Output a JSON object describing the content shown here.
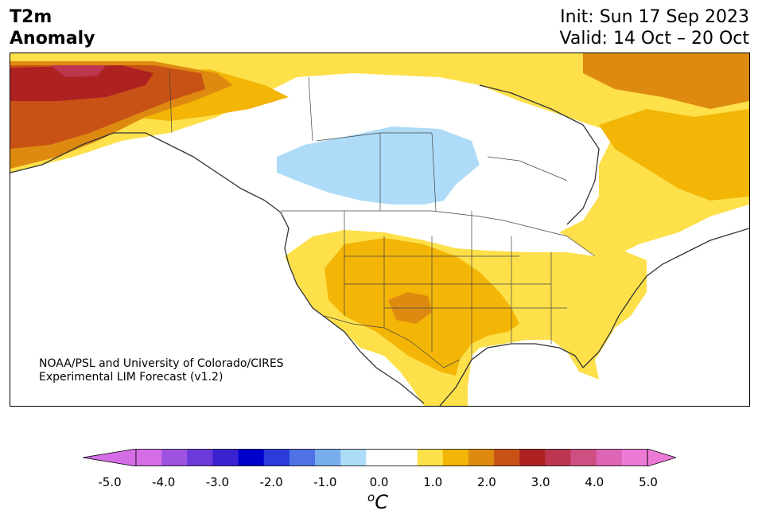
{
  "title": {
    "line1": "T2m",
    "line2": "Anomaly"
  },
  "dates": {
    "init": "Init: Sun 17 Sep 2023",
    "valid": "Valid: 14 Oct – 20 Oct"
  },
  "credit": {
    "line1": "NOAA/PSL and University of Colorado/CIRES",
    "line2": "Experimental LIM Forecast (v1.2)"
  },
  "colorbar": {
    "ticks": [
      "-5.0",
      "-4.0",
      "-3.0",
      "-2.0",
      "-1.0",
      "0.0",
      "1.0",
      "2.0",
      "3.0",
      "4.0",
      "5.0"
    ],
    "unit_symbol": "o",
    "unit_letter": "C",
    "colors": [
      "#d56ee6",
      "#9d53e0",
      "#6c39da",
      "#3a22d0",
      "#0000cc",
      "#2a3cdc",
      "#4e72e4",
      "#77aeee",
      "#aedcf8",
      "#ffffff",
      "#ffffff",
      "#fde04a",
      "#f3b506",
      "#de8a10",
      "#c85215",
      "#ae2121",
      "#bd3650",
      "#cf4f82",
      "#de64b6",
      "#ee7ad8"
    ],
    "under_color": "#d56ee6",
    "over_color": "#ee7ad8"
  }
}
